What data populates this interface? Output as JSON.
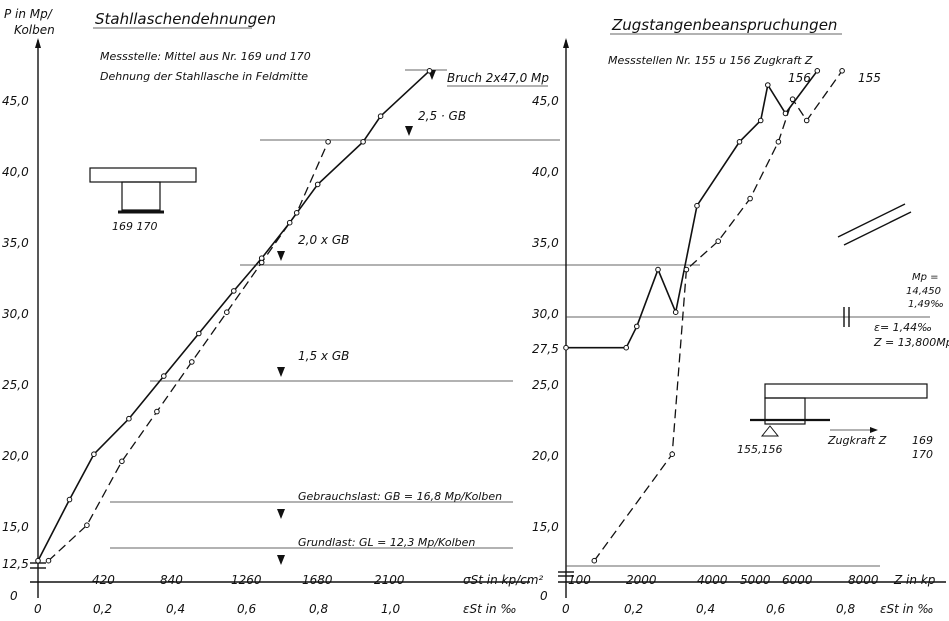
{
  "left": {
    "title": "Stahllaschendehnungen",
    "subtitle1": "Messstelle: Mittel aus Nr. 169 und 170",
    "subtitle2": "Dehnung der Stahllasche in Feldmitte",
    "ylabel1": "P in Mp/",
    "ylabel2": "Kolben",
    "xlabel_top": "σSt  in kp/cm²",
    "xlabel_bottom": "εSt  in ‰",
    "inset_label": "169  170",
    "yticks": [
      "12,5",
      "15,0",
      "20,0",
      "25,0",
      "30,0",
      "35,0",
      "40,0",
      "45,0"
    ],
    "xticks_top": [
      "420",
      "840",
      "1260",
      "1680",
      "2100"
    ],
    "xticks_bottom": [
      "0",
      "0,2",
      "0,4",
      "0,6",
      "0,8",
      "1,0"
    ],
    "zero_label": "0",
    "annotations": {
      "bruch": "Bruch  2x47,0 Mp",
      "gb25": "2,5 · GB",
      "gb20": "2,0 x GB",
      "gb15": "1,5 x GB",
      "gebrauch": "Gebrauchslast: GB = 16,8 Mp/Kolben",
      "grund": "Grundlast: GL = 12,3 Mp/Kolben"
    }
  },
  "right": {
    "title": "Zugstangenbeanspruchungen",
    "subtitle": "Messstellen Nr. 155 u 156   Zugkraft  Z",
    "xlabel_top": "Z in kp",
    "xlabel_bottom": "εSt in ‰",
    "yticks": [
      "15,0",
      "20,0",
      "25,0",
      "27,5",
      "30,0",
      "35,0",
      "40,0",
      "45,0"
    ],
    "xticks_top": [
      "100",
      "2000",
      "4000",
      "5000",
      "6000",
      "8000"
    ],
    "xticks_bottom": [
      "0",
      "0,2",
      "0,4",
      "0,6",
      "0,8"
    ],
    "zero_label": "0",
    "annotations": {
      "l156": "156",
      "l155": "155",
      "mp1": "Mp =",
      "mp2": "14,450",
      "mp3": "1,49‰",
      "eps": "ε= 1,44‰",
      "z": "Z = 13,800Mp",
      "inset1": "155,156",
      "inset2": "Zugkraft  Z",
      "inset3": "169",
      "inset4": "170"
    }
  },
  "chart_data": [
    {
      "type": "line",
      "title": "Stahllaschendehnungen",
      "xlabel": "σSt in kp/cm² / εSt in ‰",
      "ylabel": "P in Mp/Kolben",
      "ylim": [
        11,
        48
      ],
      "xlim": [
        0,
        1.15
      ],
      "series": [
        {
          "name": "169",
          "x": [
            0,
            0.09,
            0.16,
            0.26,
            0.36,
            0.46,
            0.56,
            0.64,
            0.72,
            0.8,
            0.93,
            0.98,
            1.12
          ],
          "y": [
            12.5,
            16.8,
            20.0,
            22.5,
            25.5,
            28.5,
            31.5,
            33.8,
            36.3,
            39.0,
            42.0,
            43.8,
            47.0
          ]
        },
        {
          "name": "170",
          "x": [
            0.03,
            0.14,
            0.24,
            0.34,
            0.44,
            0.54,
            0.64,
            0.74,
            0.83
          ],
          "y": [
            12.5,
            15.0,
            19.5,
            23.0,
            26.5,
            30.0,
            33.5,
            37.0,
            42.0
          ]
        }
      ]
    },
    {
      "type": "line",
      "title": "Zugstangenbeanspruchungen",
      "xlabel": "Z in kp / εSt in ‰",
      "ylabel": "P in Mp/Kolben",
      "ylim": [
        11,
        48
      ],
      "xlim": [
        0,
        1.0
      ],
      "series": [
        {
          "name": "156",
          "x": [
            0,
            0.17,
            0.2,
            0.26,
            0.31,
            0.37,
            0.49,
            0.55,
            0.57,
            0.62,
            0.71
          ],
          "y": [
            27.5,
            27.5,
            29.0,
            33.0,
            30.0,
            37.5,
            42.0,
            43.5,
            46.0,
            44.0,
            47.0
          ]
        },
        {
          "name": "155",
          "x": [
            0.08,
            0.3,
            0.34,
            0.43,
            0.52,
            0.6,
            0.64,
            0.68,
            0.78
          ],
          "y": [
            12.5,
            20.0,
            33.0,
            35.0,
            38.0,
            42.0,
            45.0,
            43.5,
            47.0
          ]
        }
      ]
    }
  ]
}
